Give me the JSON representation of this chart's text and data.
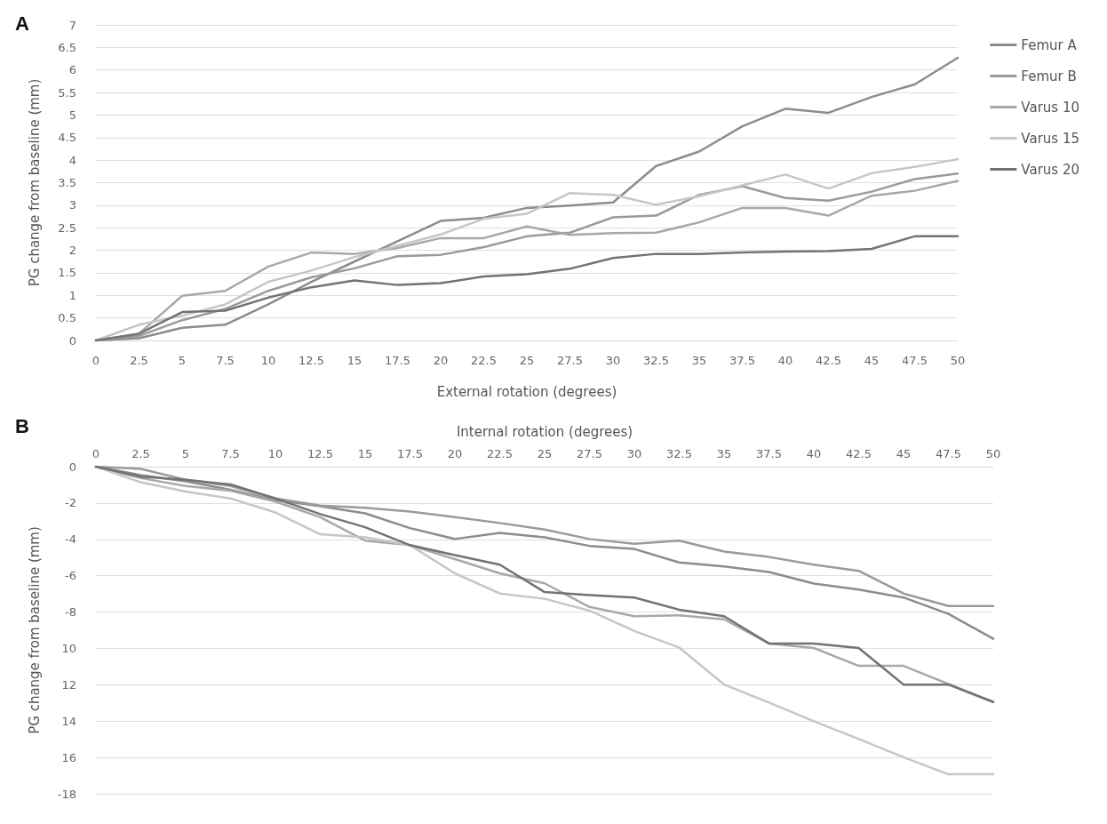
{
  "chart_data": [
    {
      "type": "line",
      "title": "A",
      "xlabel": "External rotation (degrees)",
      "ylabel": "PG change from baseline (mm)",
      "categories": [
        "0",
        "2.5",
        "5",
        "7.5",
        "10",
        "12.5",
        "15",
        "17.5",
        "20",
        "22.5",
        "25",
        "27.5",
        "30",
        "32.5",
        "35",
        "37.5",
        "40",
        "42.5",
        "45",
        "47.5",
        "50"
      ],
      "series": [
        {
          "name": "Femur A",
          "color": "#8c8c8c",
          "values": [
            0,
            0.05,
            0.28,
            0.35,
            0.8,
            1.3,
            1.75,
            2.2,
            2.65,
            2.72,
            2.94,
            2.99,
            3.06,
            3.87,
            4.19,
            4.75,
            5.14,
            5.05,
            5.4,
            5.68,
            6.27
          ]
        },
        {
          "name": "Femur B",
          "color": "#9a9a9a",
          "values": [
            0,
            0.1,
            0.45,
            0.7,
            1.1,
            1.4,
            1.6,
            1.87,
            1.9,
            2.07,
            2.31,
            2.39,
            2.73,
            2.77,
            3.23,
            3.42,
            3.16,
            3.1,
            3.3,
            3.58,
            3.7
          ]
        },
        {
          "name": "Varus 10",
          "color": "#a8a8a8",
          "values": [
            0,
            0.15,
            0.99,
            1.1,
            1.64,
            1.95,
            1.92,
            2.05,
            2.27,
            2.27,
            2.53,
            2.34,
            2.38,
            2.39,
            2.62,
            2.94,
            2.94,
            2.77,
            3.21,
            3.32,
            3.54
          ]
        },
        {
          "name": "Varus 15",
          "color": "#c6c6c6",
          "values": [
            0,
            0.35,
            0.55,
            0.8,
            1.3,
            1.55,
            1.85,
            2.1,
            2.35,
            2.7,
            2.81,
            3.27,
            3.23,
            3.01,
            3.2,
            3.44,
            3.68,
            3.37,
            3.71,
            3.85,
            4.02
          ]
        },
        {
          "name": "Varus 20",
          "color": "#737373",
          "values": [
            0,
            0.15,
            0.63,
            0.66,
            0.95,
            1.18,
            1.33,
            1.23,
            1.27,
            1.42,
            1.47,
            1.59,
            1.83,
            1.92,
            1.92,
            1.95,
            1.97,
            1.98,
            2.03,
            2.31,
            2.31
          ]
        }
      ],
      "ylim": [
        0,
        7
      ],
      "yticks": [
        0,
        0.5,
        1,
        1.5,
        2,
        2.5,
        3,
        3.5,
        4,
        4.5,
        5,
        5.5,
        6,
        6.5,
        7
      ],
      "grid": "y",
      "legend": "right",
      "marker": "none",
      "line_style": "solid"
    },
    {
      "type": "line",
      "title": "B",
      "xlabel": "Internal rotation (degrees)",
      "ylabel": "PG change from baseline (mm)",
      "categories": [
        "0",
        "2.5",
        "5",
        "7.5",
        "10",
        "12.5",
        "15",
        "17.5",
        "20",
        "22.5",
        "25",
        "27.5",
        "30",
        "32.5",
        "35",
        "37.5",
        "40",
        "42.5",
        "45",
        "47.5",
        "50"
      ],
      "series": [
        {
          "color": "#8c8c8c",
          "values": [
            0,
            -0.46,
            -0.81,
            -1.27,
            -1.84,
            -2.18,
            -2.57,
            -3.38,
            -3.98,
            -3.64,
            -3.89,
            -4.36,
            -4.53,
            -5.27,
            -5.49,
            -5.8,
            -6.43,
            -6.76,
            -7.2,
            -8.1,
            -9.47
          ]
        },
        {
          "color": "#9a9a9a",
          "values": [
            0,
            -0.12,
            -0.72,
            -1.06,
            -1.75,
            -2.14,
            -2.26,
            -2.47,
            -2.78,
            -3.1,
            -3.46,
            -3.98,
            -4.24,
            -4.07,
            -4.67,
            -4.97,
            -5.39,
            -5.73,
            -6.98,
            -7.67,
            -7.67
          ]
        },
        {
          "color": "#a8a8a8",
          "values": [
            0,
            -0.63,
            -1.06,
            -1.32,
            -1.92,
            -2.78,
            -4.07,
            -4.32,
            -5.09,
            -5.87,
            -6.42,
            -7.72,
            -8.23,
            -8.18,
            -8.4,
            -9.73,
            -9.98,
            -10.96,
            -10.96,
            -11.96,
            -12.95
          ]
        },
        {
          "color": "#c6c6c6",
          "values": [
            0,
            -0.86,
            -1.37,
            -1.75,
            -2.52,
            -3.72,
            -3.89,
            -4.32,
            -5.87,
            -6.98,
            -7.27,
            -7.92,
            -9.04,
            -9.95,
            -11.99,
            -12.98,
            -14.01,
            -14.99,
            -15.99,
            -16.93,
            -16.93
          ]
        },
        {
          "color": "#737373",
          "values": [
            0,
            -0.55,
            -0.72,
            -0.98,
            -1.75,
            -2.61,
            -3.33,
            -4.32,
            -4.87,
            -5.39,
            -6.9,
            -7.07,
            -7.2,
            -7.87,
            -8.23,
            -9.73,
            -9.73,
            -9.98,
            -11.99,
            -11.99,
            -12.95
          ]
        }
      ],
      "ylim": [
        -18,
        0
      ],
      "yticks": [
        0,
        -2,
        -4,
        -6,
        -8,
        {
          "value": -10,
          "label": "10"
        },
        {
          "value": -12,
          "label": "12"
        },
        {
          "value": -14,
          "label": "14"
        },
        {
          "value": -16,
          "label": "16"
        },
        -18
      ],
      "grid": "y",
      "marker": "none",
      "line_style": "solid"
    }
  ]
}
